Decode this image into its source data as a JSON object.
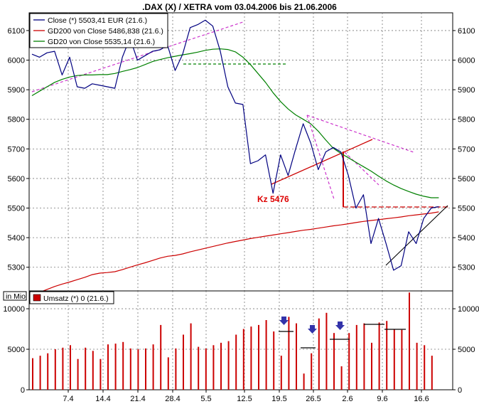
{
  "chart_data": [
    {
      "type": "line",
      "title": ".DAX (X) / XETRA vom 03.04.2006 bis 21.06.2006",
      "ylim": [
        5220,
        6160
      ],
      "y_ticks": [
        5300,
        5400,
        5500,
        5600,
        5700,
        5800,
        5900,
        6000,
        6100
      ],
      "grid": true,
      "legend_position": "top-left",
      "series": [
        {
          "name": "Close (*) 5503,41 EUR (21.6.)",
          "color": "#000080",
          "values": [
            6020,
            6010,
            6025,
            6030,
            5950,
            6010,
            5910,
            5905,
            5920,
            5915,
            5910,
            5905,
            6010,
            6075,
            6000,
            6015,
            6030,
            6035,
            6050,
            5965,
            6020,
            6110,
            6120,
            6135,
            6115,
            6030,
            5910,
            5855,
            5850,
            5650,
            5660,
            5680,
            5550,
            5680,
            5610,
            5700,
            5785,
            5720,
            5630,
            5690,
            5705,
            5690,
            5610,
            5500,
            5545,
            5380,
            5465,
            5380,
            5290,
            5305,
            5420,
            5380,
            5465,
            5500,
            5505
          ]
        },
        {
          "name": "GD200 von Close 5486,838 (21.6.)",
          "color": "#cc0000",
          "values": [
            5205,
            5215,
            5225,
            5235,
            5243,
            5250,
            5258,
            5266,
            5275,
            5280,
            5282,
            5285,
            5292,
            5300,
            5308,
            5315,
            5323,
            5331,
            5337,
            5340,
            5345,
            5352,
            5358,
            5364,
            5370,
            5376,
            5382,
            5387,
            5392,
            5397,
            5401,
            5405,
            5409,
            5413,
            5417,
            5421,
            5425,
            5428,
            5432,
            5436,
            5440,
            5443,
            5447,
            5451,
            5455,
            5458,
            5461,
            5464,
            5467,
            5470,
            5474,
            5477,
            5480,
            5483,
            5487
          ]
        },
        {
          "name": "GD20 von Close 5535,14 (21.6.)",
          "color": "#008000",
          "values": [
            5880,
            5895,
            5910,
            5925,
            5935,
            5943,
            5948,
            5950,
            5950,
            5951,
            5951,
            5955,
            5962,
            5968,
            5975,
            5985,
            5995,
            6002,
            6008,
            6013,
            6018,
            6022,
            6027,
            6033,
            6037,
            6038,
            6036,
            6028,
            6010,
            5985,
            5955,
            5925,
            5890,
            5860,
            5835,
            5815,
            5800,
            5785,
            5760,
            5730,
            5702,
            5685,
            5670,
            5655,
            5640,
            5625,
            5608,
            5592,
            5578,
            5566,
            5556,
            5547,
            5540,
            5535,
            5535
          ]
        }
      ],
      "annotations": [
        "Kz 5476"
      ]
    },
    {
      "type": "bar",
      "title": "Umsatz (*) 0 (21.6.)",
      "ylabel": "in Mio",
      "ylim": [
        0,
        12200
      ],
      "y_ticks": [
        0,
        5000,
        10000
      ],
      "y_tick_labels": [
        "0",
        "5000",
        "10000"
      ],
      "x_tick_labels": [
        "7.4",
        "14.4",
        "21.4",
        "28.4",
        "5.5",
        "12.5",
        "19.5",
        "26.5",
        "2.6",
        "9.6",
        "16.6"
      ],
      "series": [
        {
          "name": "Umsatz (*) 0 (21.6.)",
          "color": "#cc0000",
          "values": [
            3900,
            4200,
            4500,
            5000,
            5200,
            5500,
            3800,
            5200,
            4800,
            3800,
            5600,
            5700,
            5900,
            5100,
            5000,
            5100,
            5600,
            8000,
            4000,
            5100,
            6800,
            8200,
            5300,
            5100,
            5500,
            5800,
            6000,
            6800,
            7500,
            7800,
            8000,
            8600,
            7200,
            4200,
            9000,
            8200,
            2000,
            4500,
            8800,
            9500,
            7000,
            2900,
            7000,
            8000,
            8200,
            5800,
            8300,
            8500,
            7500,
            7400,
            12000,
            5800,
            5500,
            4200
          ]
        }
      ]
    }
  ]
}
